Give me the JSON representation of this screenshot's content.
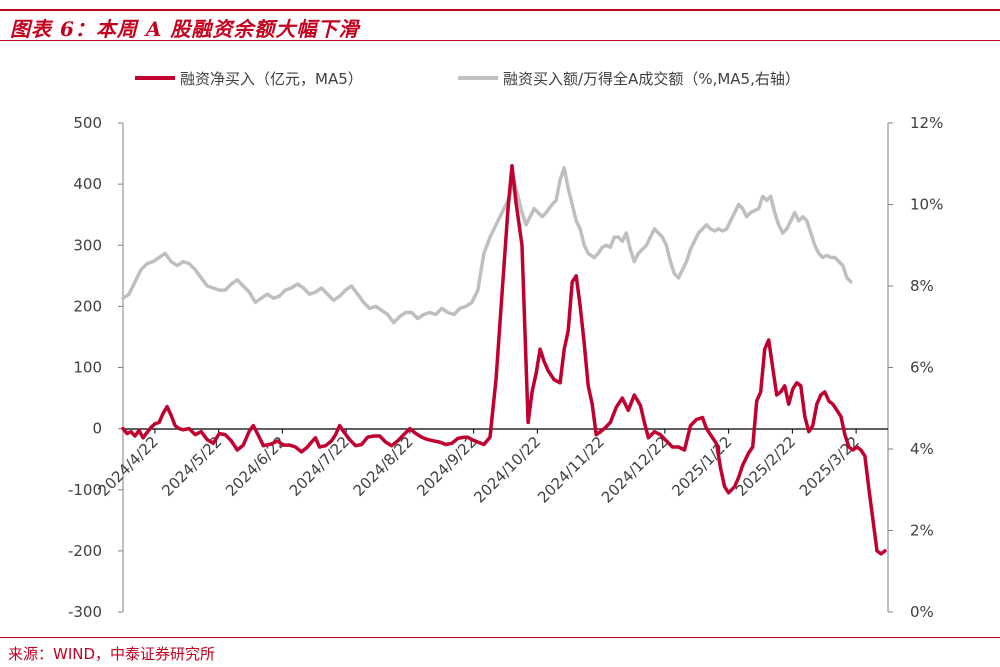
{
  "header": {
    "title": "图表 6：本周 A 股融资余额大幅下滑"
  },
  "footer": {
    "source": "来源：WIND，中泰证券研究所"
  },
  "colors": {
    "brand": "#c5001f",
    "series_net_buy": "#c00030",
    "series_ratio": "#bfbfbf"
  },
  "chart_data": {
    "type": "line",
    "legend_position": "top",
    "grid": false,
    "x_tick_labels": [
      "2024/4/22",
      "2024/5/22",
      "2024/6/22",
      "2024/7/22",
      "2024/8/22",
      "2024/9/22",
      "2024/10/22",
      "2024/11/22",
      "2024/12/22",
      "2025/1/22",
      "2025/2/22",
      "2025/3/22"
    ],
    "y_left": {
      "range": [
        -300,
        500
      ],
      "ticks": [
        "-300",
        "-200",
        "-100",
        "0",
        "100",
        "200",
        "300",
        "400",
        "500"
      ]
    },
    "y_right": {
      "range": [
        0,
        12
      ],
      "ticks": [
        "0%",
        "2%",
        "4%",
        "6%",
        "8%",
        "10%",
        "12%"
      ]
    },
    "series": [
      {
        "name": "融资净买入（亿元，MA5）",
        "axis": "left",
        "points": [
          [
            0,
            0
          ],
          [
            2,
            -8
          ],
          [
            4,
            -5
          ],
          [
            6,
            -12
          ],
          [
            8,
            -3
          ],
          [
            10,
            -15
          ],
          [
            12,
            -6
          ],
          [
            14,
            2
          ],
          [
            16,
            8
          ],
          [
            18,
            10
          ],
          [
            20,
            25
          ],
          [
            22,
            36
          ],
          [
            24,
            22
          ],
          [
            26,
            5
          ],
          [
            28,
            0
          ],
          [
            30,
            -2
          ],
          [
            33,
            0
          ],
          [
            36,
            -10
          ],
          [
            39,
            -5
          ],
          [
            42,
            -18
          ],
          [
            45,
            -24
          ],
          [
            48,
            -8
          ],
          [
            51,
            -10
          ],
          [
            54,
            -20
          ],
          [
            57,
            -35
          ],
          [
            60,
            -27
          ],
          [
            63,
            -4
          ],
          [
            65,
            5
          ],
          [
            67,
            -8
          ],
          [
            70,
            -28
          ],
          [
            74,
            -25
          ],
          [
            77,
            -20
          ],
          [
            80,
            -27
          ],
          [
            83,
            -27
          ],
          [
            86,
            -30
          ],
          [
            89,
            -38
          ],
          [
            92,
            -30
          ],
          [
            94,
            -22
          ],
          [
            96,
            -15
          ],
          [
            98,
            -30
          ],
          [
            101,
            -28
          ],
          [
            104,
            -20
          ],
          [
            106,
            -10
          ],
          [
            108,
            5
          ],
          [
            110,
            -5
          ],
          [
            113,
            -18
          ],
          [
            116,
            -28
          ],
          [
            119,
            -26
          ],
          [
            122,
            -14
          ],
          [
            125,
            -12
          ],
          [
            128,
            -12
          ],
          [
            131,
            -22
          ],
          [
            134,
            -28
          ],
          [
            137,
            -20
          ],
          [
            140,
            -10
          ],
          [
            143,
            0
          ],
          [
            146,
            -8
          ],
          [
            149,
            -14
          ],
          [
            152,
            -18
          ],
          [
            155,
            -20
          ],
          [
            158,
            -22
          ],
          [
            161,
            -26
          ],
          [
            164,
            -24
          ],
          [
            167,
            -16
          ],
          [
            170,
            -14
          ],
          [
            172,
            -14
          ],
          [
            174,
            -18
          ],
          [
            177,
            -22
          ],
          [
            180,
            -26
          ],
          [
            183,
            -14
          ],
          [
            186,
            80
          ],
          [
            189,
            220
          ],
          [
            192,
            360
          ],
          [
            194,
            430
          ],
          [
            196,
            370
          ],
          [
            199,
            300
          ],
          [
            202,
            10
          ],
          [
            204,
            60
          ],
          [
            206,
            90
          ],
          [
            208,
            130
          ],
          [
            210,
            110
          ],
          [
            212,
            95
          ],
          [
            215,
            80
          ],
          [
            218,
            75
          ],
          [
            220,
            130
          ],
          [
            222,
            160
          ],
          [
            224,
            240
          ],
          [
            226,
            250
          ],
          [
            228,
            200
          ],
          [
            230,
            140
          ],
          [
            232,
            70
          ],
          [
            234,
            40
          ],
          [
            236,
            -10
          ],
          [
            238,
            -5
          ],
          [
            240,
            0
          ],
          [
            243,
            10
          ],
          [
            246,
            35
          ],
          [
            249,
            50
          ],
          [
            252,
            30
          ],
          [
            255,
            55
          ],
          [
            258,
            38
          ],
          [
            260,
            10
          ],
          [
            262,
            -15
          ],
          [
            265,
            -5
          ],
          [
            268,
            -10
          ],
          [
            271,
            -20
          ],
          [
            274,
            -30
          ],
          [
            277,
            -30
          ],
          [
            280,
            -35
          ],
          [
            283,
            5
          ],
          [
            286,
            15
          ],
          [
            289,
            18
          ],
          [
            291,
            0
          ],
          [
            293,
            -10
          ],
          [
            296,
            -25
          ],
          [
            298,
            -65
          ],
          [
            300,
            -95
          ],
          [
            302,
            -105
          ],
          [
            305,
            -95
          ],
          [
            307,
            -80
          ],
          [
            309,
            -60
          ],
          [
            312,
            -40
          ],
          [
            314,
            -30
          ],
          [
            316,
            45
          ],
          [
            318,
            60
          ],
          [
            320,
            130
          ],
          [
            322,
            145
          ],
          [
            324,
            100
          ],
          [
            326,
            55
          ],
          [
            328,
            60
          ],
          [
            330,
            70
          ],
          [
            332,
            40
          ],
          [
            334,
            65
          ],
          [
            336,
            75
          ],
          [
            338,
            70
          ],
          [
            340,
            20
          ],
          [
            342,
            -5
          ],
          [
            344,
            5
          ],
          [
            346,
            40
          ],
          [
            348,
            55
          ],
          [
            350,
            60
          ],
          [
            352,
            45
          ],
          [
            354,
            40
          ],
          [
            356,
            30
          ],
          [
            358,
            20
          ],
          [
            360,
            -10
          ],
          [
            362,
            -30
          ],
          [
            364,
            -35
          ],
          [
            366,
            -30
          ],
          [
            368,
            -35
          ],
          [
            370,
            -45
          ],
          [
            372,
            -100
          ],
          [
            374,
            -150
          ],
          [
            376,
            -200
          ],
          [
            378,
            -205
          ],
          [
            380,
            -200
          ]
        ]
      },
      {
        "name": "融资买入额/万得全A成交额（%,MA5,右轴）",
        "axis": "right",
        "points": [
          [
            0,
            7.7
          ],
          [
            3,
            7.8
          ],
          [
            6,
            8.1
          ],
          [
            9,
            8.4
          ],
          [
            12,
            8.55
          ],
          [
            15,
            8.6
          ],
          [
            18,
            8.7
          ],
          [
            21,
            8.8
          ],
          [
            24,
            8.6
          ],
          [
            27,
            8.5
          ],
          [
            30,
            8.6
          ],
          [
            33,
            8.55
          ],
          [
            36,
            8.4
          ],
          [
            39,
            8.2
          ],
          [
            42,
            8.0
          ],
          [
            45,
            7.95
          ],
          [
            48,
            7.9
          ],
          [
            51,
            7.9
          ],
          [
            54,
            8.05
          ],
          [
            57,
            8.15
          ],
          [
            60,
            8.0
          ],
          [
            63,
            7.85
          ],
          [
            66,
            7.6
          ],
          [
            69,
            7.7
          ],
          [
            72,
            7.8
          ],
          [
            75,
            7.7
          ],
          [
            78,
            7.75
          ],
          [
            81,
            7.9
          ],
          [
            84,
            7.95
          ],
          [
            87,
            8.05
          ],
          [
            90,
            7.95
          ],
          [
            93,
            7.8
          ],
          [
            96,
            7.85
          ],
          [
            99,
            7.95
          ],
          [
            102,
            7.8
          ],
          [
            105,
            7.65
          ],
          [
            108,
            7.75
          ],
          [
            111,
            7.9
          ],
          [
            114,
            8.0
          ],
          [
            117,
            7.8
          ],
          [
            120,
            7.6
          ],
          [
            123,
            7.45
          ],
          [
            126,
            7.5
          ],
          [
            129,
            7.4
          ],
          [
            132,
            7.3
          ],
          [
            135,
            7.1
          ],
          [
            138,
            7.25
          ],
          [
            141,
            7.35
          ],
          [
            144,
            7.35
          ],
          [
            147,
            7.2
          ],
          [
            150,
            7.3
          ],
          [
            153,
            7.35
          ],
          [
            156,
            7.3
          ],
          [
            159,
            7.45
          ],
          [
            162,
            7.35
          ],
          [
            165,
            7.3
          ],
          [
            168,
            7.45
          ],
          [
            171,
            7.5
          ],
          [
            174,
            7.6
          ],
          [
            177,
            7.9
          ],
          [
            180,
            8.8
          ],
          [
            183,
            9.2
          ],
          [
            186,
            9.5
          ],
          [
            189,
            9.8
          ],
          [
            192,
            10.1
          ],
          [
            195,
            10.6
          ],
          [
            197,
            10.2
          ],
          [
            199,
            9.8
          ],
          [
            201,
            9.5
          ],
          [
            203,
            9.7
          ],
          [
            205,
            9.9
          ],
          [
            207,
            9.8
          ],
          [
            209,
            9.7
          ],
          [
            211,
            9.8
          ],
          [
            214,
            10.0
          ],
          [
            216,
            10.1
          ],
          [
            218,
            10.6
          ],
          [
            220,
            10.9
          ],
          [
            222,
            10.4
          ],
          [
            224,
            10.0
          ],
          [
            226,
            9.6
          ],
          [
            228,
            9.4
          ],
          [
            230,
            9.0
          ],
          [
            232,
            8.8
          ],
          [
            235,
            8.7
          ],
          [
            237,
            8.8
          ],
          [
            239,
            8.95
          ],
          [
            241,
            9.0
          ],
          [
            243,
            8.95
          ],
          [
            245,
            9.2
          ],
          [
            247,
            9.2
          ],
          [
            249,
            9.1
          ],
          [
            251,
            9.3
          ],
          [
            253,
            8.9
          ],
          [
            255,
            8.6
          ],
          [
            257,
            8.8
          ],
          [
            259,
            8.9
          ],
          [
            261,
            9.0
          ],
          [
            263,
            9.2
          ],
          [
            265,
            9.4
          ],
          [
            267,
            9.3
          ],
          [
            269,
            9.2
          ],
          [
            271,
            9.0
          ],
          [
            273,
            8.6
          ],
          [
            275,
            8.3
          ],
          [
            277,
            8.2
          ],
          [
            279,
            8.4
          ],
          [
            281,
            8.6
          ],
          [
            283,
            8.9
          ],
          [
            285,
            9.1
          ],
          [
            287,
            9.3
          ],
          [
            289,
            9.4
          ],
          [
            291,
            9.5
          ],
          [
            293,
            9.4
          ],
          [
            295,
            9.35
          ],
          [
            297,
            9.4
          ],
          [
            299,
            9.35
          ],
          [
            301,
            9.4
          ],
          [
            303,
            9.6
          ],
          [
            305,
            9.8
          ],
          [
            307,
            10.0
          ],
          [
            309,
            9.9
          ],
          [
            311,
            9.7
          ],
          [
            313,
            9.8
          ],
          [
            315,
            9.85
          ],
          [
            317,
            9.9
          ],
          [
            319,
            10.2
          ],
          [
            321,
            10.1
          ],
          [
            323,
            10.2
          ],
          [
            325,
            9.8
          ],
          [
            327,
            9.5
          ],
          [
            329,
            9.3
          ],
          [
            331,
            9.4
          ],
          [
            333,
            9.6
          ],
          [
            335,
            9.8
          ],
          [
            337,
            9.6
          ],
          [
            339,
            9.7
          ],
          [
            341,
            9.6
          ],
          [
            343,
            9.3
          ],
          [
            345,
            9.0
          ],
          [
            347,
            8.8
          ],
          [
            349,
            8.7
          ],
          [
            351,
            8.75
          ],
          [
            353,
            8.7
          ],
          [
            355,
            8.7
          ],
          [
            357,
            8.6
          ],
          [
            359,
            8.5
          ],
          [
            361,
            8.2
          ],
          [
            363,
            8.1
          ]
        ]
      }
    ]
  }
}
